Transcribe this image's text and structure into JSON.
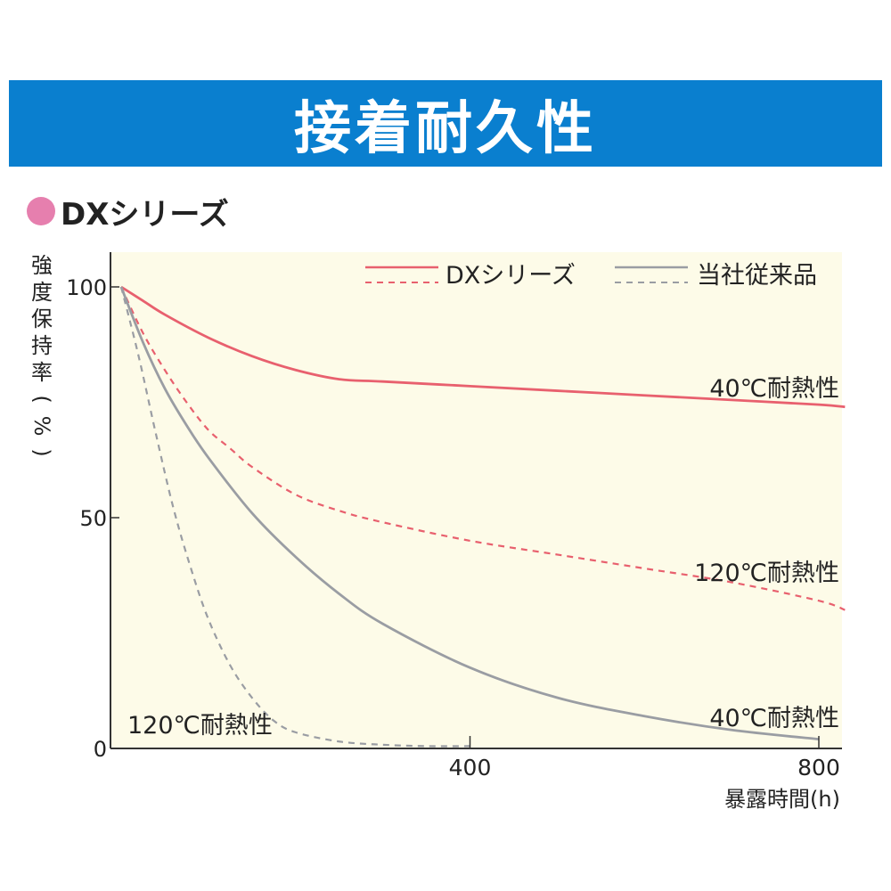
{
  "header": {
    "title": "接着耐久性",
    "banner_color": "#0a7fcf"
  },
  "series_heading": {
    "label": "DXシリーズ",
    "dot_color": "#e67fae"
  },
  "chart_data": {
    "type": "line",
    "ylabel_chars": [
      "強",
      "度",
      "保",
      "持",
      "率",
      "(",
      "%",
      ")"
    ],
    "xlabel": "暴露時間(h)",
    "xlim": [
      0,
      830
    ],
    "ylim": [
      0,
      100
    ],
    "xticks": [
      400,
      800
    ],
    "yticks": [
      0,
      50,
      100
    ],
    "plot_background": "#fdfbe8",
    "legend": [
      {
        "name": "DXシリーズ",
        "color": "#e8606e"
      },
      {
        "name": "当社従来品",
        "color": "#9a9da3"
      }
    ],
    "series": [
      {
        "name": "DXシリーズ",
        "condition": "40℃耐熱性",
        "color": "#e8606e",
        "dash": false,
        "x": [
          0,
          25,
          50,
          100,
          150,
          200,
          250,
          300,
          400,
          500,
          600,
          700,
          800,
          830
        ],
        "y": [
          100,
          97,
          94,
          89,
          85,
          82,
          80,
          79.5,
          78.5,
          77.5,
          76.5,
          75.5,
          74.5,
          74
        ]
      },
      {
        "name": "DXシリーズ",
        "condition": "120℃耐熱性",
        "color": "#e8606e",
        "dash": true,
        "x": [
          0,
          25,
          50,
          75,
          100,
          125,
          150,
          200,
          250,
          300,
          400,
          500,
          600,
          700,
          800,
          830
        ],
        "y": [
          100,
          90,
          82,
          75,
          69,
          65,
          61,
          55,
          51.5,
          49,
          45,
          42,
          39,
          36,
          32,
          30
        ]
      },
      {
        "name": "当社従来品",
        "condition": "40℃耐熱性",
        "color": "#9a9da3",
        "dash": false,
        "x": [
          0,
          25,
          50,
          75,
          100,
          150,
          200,
          250,
          300,
          400,
          500,
          600,
          700,
          800
        ],
        "y": [
          100,
          88,
          78,
          70,
          63,
          51,
          41.5,
          33.5,
          27,
          17.5,
          11,
          7,
          4,
          2
        ]
      },
      {
        "name": "当社従来品",
        "condition": "120℃耐熱性",
        "color": "#9a9da3",
        "dash": true,
        "x": [
          0,
          20,
          40,
          60,
          80,
          100,
          125,
          150,
          175,
          200,
          250,
          300,
          350,
          400
        ],
        "y": [
          100,
          85,
          68,
          52,
          39,
          28,
          18,
          11,
          6,
          3.5,
          1.5,
          0.8,
          0.5,
          0.5
        ]
      }
    ],
    "annotations": [
      {
        "text": "40℃耐熱性",
        "for": "DX 40"
      },
      {
        "text": "120℃耐熱性",
        "for": "DX 120"
      },
      {
        "text": "40℃耐熱性",
        "for": "conventional 40"
      },
      {
        "text": "120℃耐熱性",
        "for": "conventional 120"
      }
    ]
  }
}
